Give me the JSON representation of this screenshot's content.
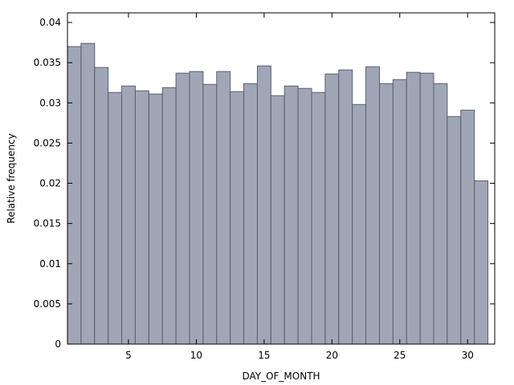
{
  "chart_data": {
    "type": "bar",
    "title": "",
    "xlabel": "DAY_OF_MONTH",
    "ylabel": "Relative frequency",
    "x": [
      1,
      2,
      3,
      4,
      5,
      6,
      7,
      8,
      9,
      10,
      11,
      12,
      13,
      14,
      15,
      16,
      17,
      18,
      19,
      20,
      21,
      22,
      23,
      24,
      25,
      26,
      27,
      28,
      29,
      30,
      31
    ],
    "values": [
      0.037,
      0.0374,
      0.0344,
      0.0313,
      0.0321,
      0.0315,
      0.0311,
      0.0319,
      0.0337,
      0.0339,
      0.0323,
      0.0339,
      0.0314,
      0.0324,
      0.0346,
      0.0309,
      0.0321,
      0.0318,
      0.0313,
      0.0336,
      0.0341,
      0.0298,
      0.0345,
      0.0324,
      0.0329,
      0.0338,
      0.0337,
      0.0324,
      0.0283,
      0.0291,
      0.0203
    ],
    "xlim": [
      0.5,
      32.0
    ],
    "ylim": [
      0,
      0.0412
    ],
    "xticks": [
      5,
      10,
      15,
      20,
      25,
      30
    ],
    "xtick_labels": [
      "5",
      "10",
      "15",
      "20",
      "25",
      "30"
    ],
    "yticks": [
      0,
      0.005,
      0.01,
      0.015,
      0.02,
      0.025,
      0.03,
      0.035,
      0.04
    ],
    "ytick_labels": [
      "0",
      "0.005",
      "0.01",
      "0.015",
      "0.02",
      "0.025",
      "0.03",
      "0.035",
      "0.04"
    ],
    "grid": false,
    "colors": {
      "bar_fill": "#a0a6b6",
      "bar_stroke": "#566070"
    }
  }
}
